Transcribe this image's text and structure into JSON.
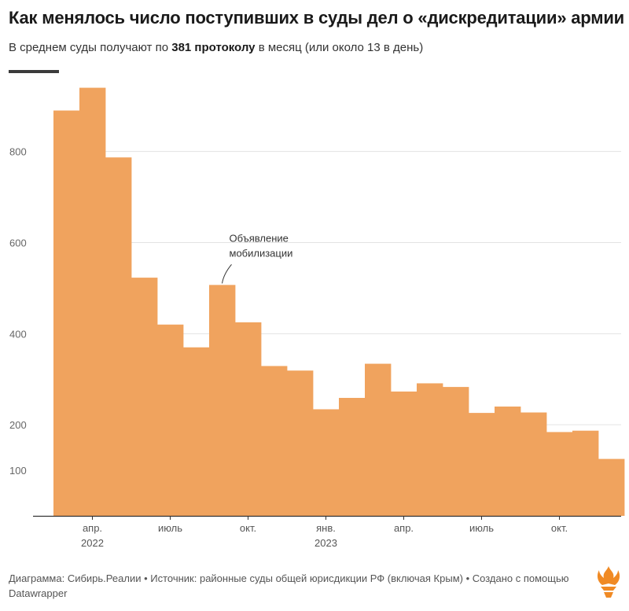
{
  "header": {
    "title": "Как менялось число поступивших в суды дел о «дискредитации» армии",
    "subtitle_before": "В среднем суды получают по ",
    "subtitle_bold": "381 протоколу",
    "subtitle_after": " в месяц (или около 13 в день)"
  },
  "footer": {
    "text": "Диаграмма: Сибирь.Реалии • Источник: районные суды общей юрисдикции РФ (включая Крым) • Создано с помощью Datawrapper"
  },
  "colors": {
    "bar": "#f0a35e",
    "accent": "#3b3b3b",
    "logo": "#f08a24"
  },
  "logo": {
    "icon": "rferl-flame-logo"
  },
  "chart_data": {
    "type": "bar",
    "title": "Как менялось число поступивших в суды дел о «дискредитации» армии",
    "xlabel": "",
    "ylabel": "",
    "ylim": [
      0,
      960
    ],
    "yticks": [
      100,
      200,
      400,
      600,
      800
    ],
    "grid": true,
    "categories": [
      "2022-03",
      "2022-04",
      "2022-05",
      "2022-06",
      "2022-07",
      "2022-08",
      "2022-09",
      "2022-10",
      "2022-11",
      "2022-12",
      "2023-01",
      "2023-02",
      "2023-03",
      "2023-04",
      "2023-05",
      "2023-06",
      "2023-07",
      "2023-08",
      "2023-09",
      "2023-10",
      "2023-11",
      "2023-12"
    ],
    "values": [
      890,
      940,
      787,
      523,
      420,
      370,
      507,
      425,
      329,
      319,
      234,
      259,
      334,
      273,
      291,
      283,
      226,
      240,
      227,
      184,
      187,
      125
    ],
    "xtick_labels": [
      {
        "index": 1,
        "line1": "апр.",
        "line2": "2022"
      },
      {
        "index": 4,
        "line1": "июль",
        "line2": ""
      },
      {
        "index": 7,
        "line1": "окт.",
        "line2": ""
      },
      {
        "index": 10,
        "line1": "янв.",
        "line2": "2023"
      },
      {
        "index": 13,
        "line1": "апр.",
        "line2": ""
      },
      {
        "index": 16,
        "line1": "июль",
        "line2": ""
      },
      {
        "index": 19,
        "line1": "окт.",
        "line2": ""
      }
    ],
    "annotations": [
      {
        "index": 6,
        "line1": "Объявление",
        "line2": "мобилизации"
      }
    ]
  }
}
